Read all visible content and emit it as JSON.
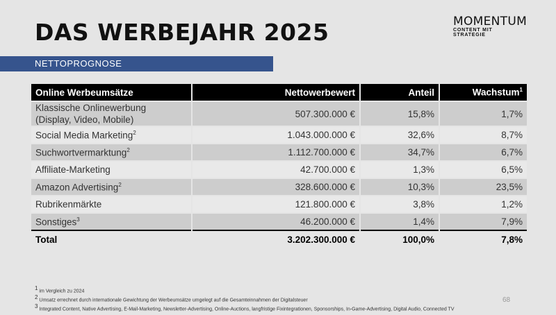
{
  "title": "DAS WERBEJAHR 2025",
  "subtitle": "NETTOPROGNOSE",
  "logo": {
    "main": "MOMENTUM",
    "sub": "CONTENT MIT STRATEGIE"
  },
  "table": {
    "headers": {
      "c1": "Online Werbeumsätze",
      "c2": "Nettowerbewert",
      "c3": "Anteil",
      "c4": "Wachstum",
      "c4_sup": "1"
    },
    "rows": [
      {
        "label": "Klassische Onlinewerbung",
        "label2": "(Display, Video, Mobile)",
        "sup": "",
        "value": "507.300.000 €",
        "share": "15,8%",
        "growth": "1,7%"
      },
      {
        "label": "Social Media Marketing",
        "sup": "2",
        "value": "1.043.000.000 €",
        "share": "32,6%",
        "growth": "8,7%"
      },
      {
        "label": "Suchwortvermarktung",
        "sup": "2",
        "value": "1.112.700.000 €",
        "share": "34,7%",
        "growth": "6,7%"
      },
      {
        "label": "Affiliate-Marketing",
        "sup": "",
        "value": "42.700.000 €",
        "share": "1,3%",
        "growth": "6,5%"
      },
      {
        "label": "Amazon Advertising",
        "sup": "2",
        "value": "328.600.000 €",
        "share": "10,3%",
        "growth": "23,5%"
      },
      {
        "label": "Rubrikenmärkte",
        "sup": "",
        "value": "121.800.000 €",
        "share": "3,8%",
        "growth": "1,2%"
      },
      {
        "label": "Sonstiges",
        "sup": "3",
        "value": "46.200.000 €",
        "share": "1,4%",
        "growth": "7,9%"
      }
    ],
    "total": {
      "label": "Total",
      "value": "3.202.300.000 €",
      "share": "100,0%",
      "growth": "7,8%"
    }
  },
  "footnotes": [
    {
      "num": "1",
      "text": "im Vergleich zu 2024"
    },
    {
      "num": "2",
      "text": "Umsatz errechnet durch internationale Gewichtung der Werbeumsätze umgelegt auf die Gesamteinnahmen der Digitalsteuer"
    },
    {
      "num": "3",
      "text": "Integrated Content, Native Advertising, E-Mail-Marketing, Newsletter-Advertising, Online-Auctions, langfristige Fixintegrationen, Sponsorships, In-Game-Advertising, Digital Audio, Connected TV"
    }
  ],
  "page_number": "68"
}
